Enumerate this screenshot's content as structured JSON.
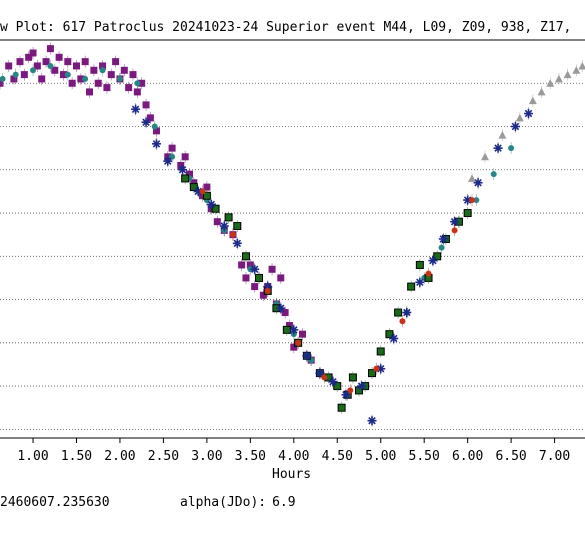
{
  "title": "w Plot: 617 Patroclus 20241023-24 Superior event M44, L09, Z09, 938, Z17,",
  "footer": {
    "jd0_value": "2460607.235630",
    "alpha_label": "alpha(JDo):",
    "alpha_value": "6.9"
  },
  "chart_data": {
    "type": "scatter",
    "title": "w Plot: 617 Patroclus 20241023-24 Superior event M44, L09, Z09, 938, Z17,",
    "xlabel": "Hours",
    "ylabel": "",
    "xlim": [
      0.62,
      7.35
    ],
    "ylim": [
      0.92,
      0.0
    ],
    "y_ticks": [
      0.1,
      0.2,
      0.3,
      0.4,
      0.5,
      0.6,
      0.7,
      0.8,
      0.9
    ],
    "x_ticks": [
      1.0,
      1.5,
      2.0,
      2.5,
      3.0,
      3.5,
      4.0,
      4.5,
      5.0,
      5.5,
      6.0,
      6.5,
      7.0
    ],
    "x_tick_labels": [
      "1.00",
      "1.50",
      "2.00",
      "2.50",
      "3.00",
      "3.50",
      "4.00",
      "4.50",
      "5.00",
      "5.50",
      "6.00",
      "6.50",
      "7.00"
    ],
    "grid": "horizontal-dotted",
    "colors": {
      "purple": "#7a1a7f",
      "teal": "#2a8585",
      "green": "#1a6a1a",
      "navy": "#1c2a8a",
      "red": "#c8331a",
      "gray": "#9a9a9a"
    },
    "series": [
      {
        "marker": "square",
        "color": "#7a1a7f",
        "points": [
          [
            0.62,
            0.1
          ],
          [
            0.72,
            0.06
          ],
          [
            0.78,
            0.09
          ],
          [
            0.85,
            0.05
          ],
          [
            0.9,
            0.08
          ],
          [
            0.95,
            0.04
          ],
          [
            1.0,
            0.03
          ],
          [
            1.05,
            0.06
          ],
          [
            1.1,
            0.09
          ],
          [
            1.15,
            0.05
          ],
          [
            1.2,
            0.02
          ],
          [
            1.25,
            0.07
          ],
          [
            1.3,
            0.04
          ],
          [
            1.35,
            0.08
          ],
          [
            1.4,
            0.05
          ],
          [
            1.45,
            0.1
          ],
          [
            1.5,
            0.06
          ],
          [
            1.55,
            0.09
          ],
          [
            1.6,
            0.05
          ],
          [
            1.65,
            0.12
          ],
          [
            1.7,
            0.07
          ],
          [
            1.75,
            0.1
          ],
          [
            1.8,
            0.06
          ],
          [
            1.85,
            0.11
          ],
          [
            1.9,
            0.08
          ],
          [
            1.95,
            0.05
          ],
          [
            2.0,
            0.09
          ],
          [
            2.05,
            0.07
          ],
          [
            2.1,
            0.11
          ],
          [
            2.15,
            0.08
          ],
          [
            2.2,
            0.12
          ],
          [
            2.25,
            0.1
          ],
          [
            2.3,
            0.15
          ],
          [
            2.35,
            0.18
          ],
          [
            2.42,
            0.21
          ],
          [
            2.55,
            0.27
          ],
          [
            2.6,
            0.25
          ],
          [
            2.7,
            0.29
          ],
          [
            2.75,
            0.27
          ],
          [
            2.8,
            0.31
          ],
          [
            2.85,
            0.33
          ],
          [
            2.95,
            0.36
          ],
          [
            3.0,
            0.34
          ],
          [
            3.05,
            0.39
          ],
          [
            3.12,
            0.42
          ],
          [
            3.2,
            0.44
          ],
          [
            3.3,
            0.45
          ],
          [
            3.4,
            0.52
          ],
          [
            3.45,
            0.55
          ],
          [
            3.5,
            0.52
          ],
          [
            3.55,
            0.57
          ],
          [
            3.6,
            0.55
          ],
          [
            3.65,
            0.59
          ],
          [
            3.7,
            0.57
          ],
          [
            3.75,
            0.53
          ],
          [
            3.8,
            0.61
          ],
          [
            3.85,
            0.55
          ],
          [
            3.9,
            0.63
          ],
          [
            3.95,
            0.66
          ],
          [
            4.0,
            0.71
          ],
          [
            4.1,
            0.68
          ],
          [
            4.2,
            0.74
          ],
          [
            4.3,
            0.77
          ]
        ]
      },
      {
        "marker": "circle",
        "color": "#2a8585",
        "points": [
          [
            0.65,
            0.09
          ],
          [
            0.8,
            0.08
          ],
          [
            1.0,
            0.07
          ],
          [
            1.2,
            0.06
          ],
          [
            1.4,
            0.08
          ],
          [
            1.6,
            0.09
          ],
          [
            1.8,
            0.07
          ],
          [
            2.0,
            0.09
          ],
          [
            2.2,
            0.1
          ],
          [
            2.4,
            0.2
          ],
          [
            2.6,
            0.27
          ],
          [
            2.8,
            0.32
          ],
          [
            3.0,
            0.37
          ],
          [
            3.2,
            0.44
          ],
          [
            3.5,
            0.53
          ],
          [
            3.8,
            0.61
          ],
          [
            4.0,
            0.68
          ],
          [
            4.2,
            0.74
          ],
          [
            5.3,
            0.63
          ],
          [
            5.5,
            0.55
          ],
          [
            5.7,
            0.48
          ],
          [
            5.9,
            0.42
          ],
          [
            6.1,
            0.37
          ],
          [
            6.3,
            0.31
          ],
          [
            6.5,
            0.25
          ]
        ]
      },
      {
        "marker": "square",
        "color": "#1a6a1a",
        "points": [
          [
            2.75,
            0.32
          ],
          [
            2.85,
            0.34
          ],
          [
            3.0,
            0.36
          ],
          [
            3.1,
            0.39
          ],
          [
            3.25,
            0.41
          ],
          [
            3.35,
            0.43
          ],
          [
            3.45,
            0.5
          ],
          [
            3.6,
            0.55
          ],
          [
            3.7,
            0.58
          ],
          [
            3.8,
            0.62
          ],
          [
            3.92,
            0.67
          ],
          [
            4.05,
            0.7
          ],
          [
            4.15,
            0.73
          ],
          [
            4.3,
            0.77
          ],
          [
            4.4,
            0.78
          ],
          [
            4.5,
            0.8
          ],
          [
            4.55,
            0.85
          ],
          [
            4.62,
            0.82
          ],
          [
            4.68,
            0.78
          ],
          [
            4.75,
            0.81
          ],
          [
            4.82,
            0.8
          ],
          [
            4.9,
            0.77
          ],
          [
            5.0,
            0.72
          ],
          [
            5.1,
            0.68
          ],
          [
            5.2,
            0.63
          ],
          [
            5.35,
            0.57
          ],
          [
            5.45,
            0.52
          ],
          [
            5.55,
            0.55
          ],
          [
            5.65,
            0.5
          ],
          [
            5.75,
            0.46
          ],
          [
            5.9,
            0.42
          ],
          [
            6.0,
            0.4
          ]
        ]
      },
      {
        "marker": "star",
        "color": "#1c2a8a",
        "points": [
          [
            2.18,
            0.16
          ],
          [
            2.3,
            0.19
          ],
          [
            2.42,
            0.24
          ],
          [
            2.55,
            0.28
          ],
          [
            2.72,
            0.3
          ],
          [
            2.9,
            0.35
          ],
          [
            3.05,
            0.38
          ],
          [
            3.2,
            0.43
          ],
          [
            3.35,
            0.47
          ],
          [
            3.55,
            0.53
          ],
          [
            3.7,
            0.57
          ],
          [
            3.85,
            0.62
          ],
          [
            4.0,
            0.67
          ],
          [
            4.15,
            0.73
          ],
          [
            4.3,
            0.77
          ],
          [
            4.45,
            0.79
          ],
          [
            4.6,
            0.82
          ],
          [
            4.78,
            0.8
          ],
          [
            4.9,
            0.88
          ],
          [
            5.0,
            0.76
          ],
          [
            5.15,
            0.69
          ],
          [
            5.3,
            0.63
          ],
          [
            5.45,
            0.56
          ],
          [
            5.6,
            0.51
          ],
          [
            5.72,
            0.46
          ],
          [
            5.85,
            0.42
          ],
          [
            6.0,
            0.37
          ],
          [
            6.12,
            0.33
          ],
          [
            6.35,
            0.25
          ],
          [
            6.55,
            0.2
          ],
          [
            6.7,
            0.17
          ]
        ]
      },
      {
        "marker": "circle",
        "color": "#c8331a",
        "points": [
          [
            2.95,
            0.35
          ],
          [
            3.3,
            0.45
          ],
          [
            3.7,
            0.58
          ],
          [
            4.05,
            0.7
          ],
          [
            4.35,
            0.78
          ],
          [
            4.65,
            0.81
          ],
          [
            4.95,
            0.76
          ],
          [
            5.25,
            0.65
          ],
          [
            5.55,
            0.54
          ],
          [
            5.85,
            0.44
          ],
          [
            6.05,
            0.37
          ]
        ]
      },
      {
        "marker": "triangle",
        "color": "#9a9a9a",
        "points": [
          [
            6.05,
            0.32
          ],
          [
            6.2,
            0.27
          ],
          [
            6.4,
            0.22
          ],
          [
            6.6,
            0.18
          ],
          [
            6.75,
            0.14
          ],
          [
            6.85,
            0.12
          ],
          [
            6.95,
            0.1
          ],
          [
            7.05,
            0.09
          ],
          [
            7.15,
            0.08
          ],
          [
            7.25,
            0.07
          ],
          [
            7.32,
            0.06
          ]
        ]
      }
    ]
  }
}
